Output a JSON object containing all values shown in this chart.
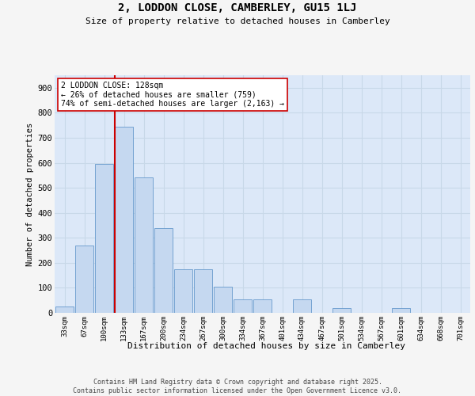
{
  "title": "2, LODDON CLOSE, CAMBERLEY, GU15 1LJ",
  "subtitle": "Size of property relative to detached houses in Camberley",
  "xlabel": "Distribution of detached houses by size in Camberley",
  "ylabel": "Number of detached properties",
  "categories": [
    "33sqm",
    "67sqm",
    "100sqm",
    "133sqm",
    "167sqm",
    "200sqm",
    "234sqm",
    "267sqm",
    "300sqm",
    "334sqm",
    "367sqm",
    "401sqm",
    "434sqm",
    "467sqm",
    "501sqm",
    "534sqm",
    "567sqm",
    "601sqm",
    "634sqm",
    "668sqm",
    "701sqm"
  ],
  "values": [
    25,
    270,
    595,
    745,
    540,
    340,
    175,
    175,
    105,
    55,
    55,
    0,
    55,
    0,
    20,
    0,
    0,
    20,
    0,
    0,
    0
  ],
  "bar_fill_color": "#c5d8f0",
  "bar_edge_color": "#6699cc",
  "plot_bg_color": "#dce8f8",
  "fig_bg_color": "#f5f5f5",
  "grid_color": "#c8d8e8",
  "vline_color": "#cc0000",
  "vline_index": 2.55,
  "annotation_text": "2 LODDON CLOSE: 128sqm\n← 26% of detached houses are smaller (759)\n74% of semi-detached houses are larger (2,163) →",
  "ylim_max": 950,
  "yticks": [
    0,
    100,
    200,
    300,
    400,
    500,
    600,
    700,
    800,
    900
  ],
  "footer": "Contains HM Land Registry data © Crown copyright and database right 2025.\nContains public sector information licensed under the Open Government Licence v3.0."
}
